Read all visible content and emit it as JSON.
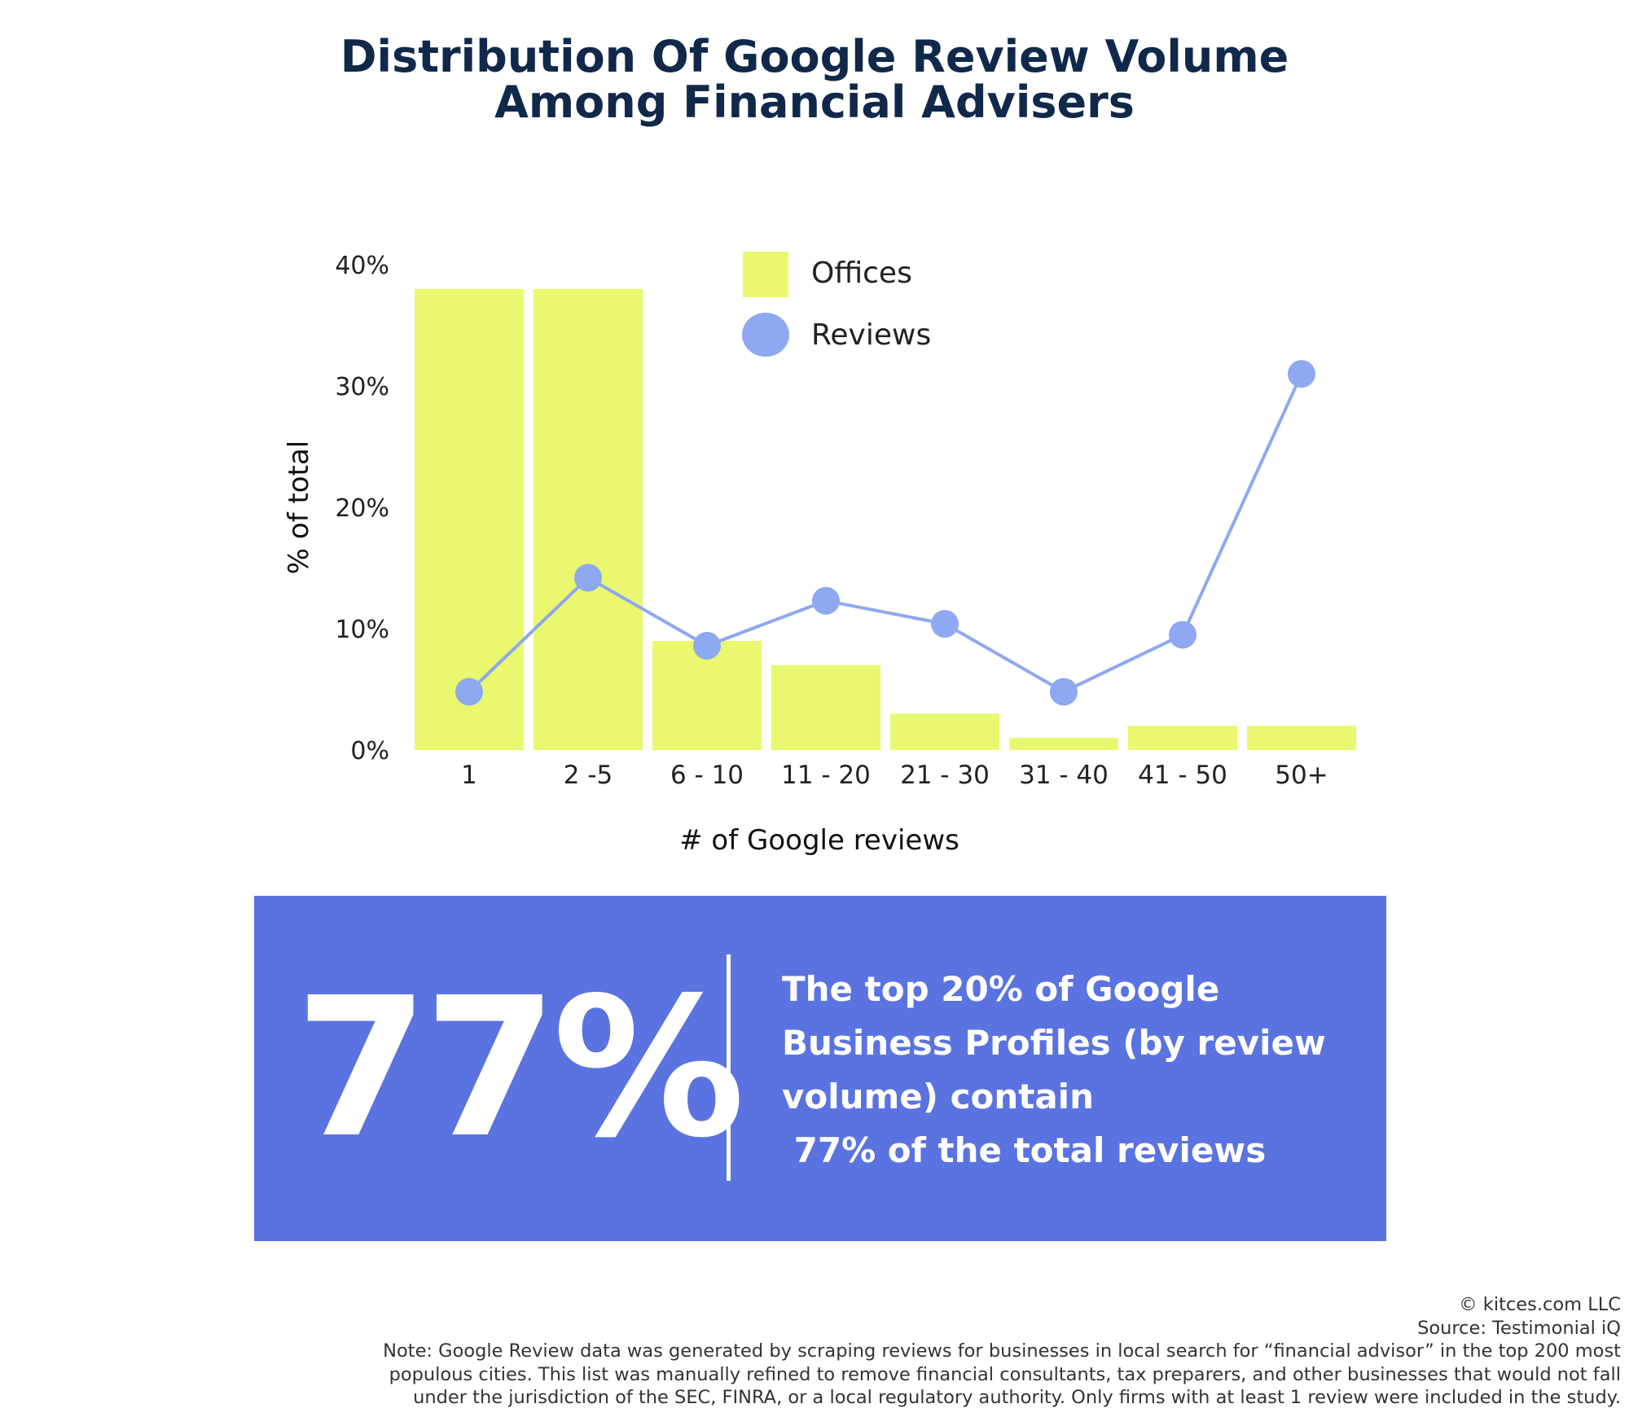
{
  "title": {
    "line1": "Distribution Of Google Review Volume",
    "line2": "Among Financial Advisers"
  },
  "chart_data": {
    "type": "bar",
    "categories": [
      "1",
      "2 -5",
      "6 - 10",
      "11 - 20",
      "21 - 30",
      "31 - 40",
      "41 - 50",
      "50+"
    ],
    "series": [
      {
        "name": "Offices",
        "type": "bar",
        "color": "#e9f86f",
        "values": [
          38,
          38,
          9,
          7,
          3,
          1,
          2,
          2
        ]
      },
      {
        "name": "Reviews",
        "type": "line",
        "color": "#8ea8f2",
        "values": [
          4.8,
          14.2,
          8.6,
          12.3,
          10.4,
          4.8,
          9.5,
          31.0
        ]
      }
    ],
    "xlabel": "# of Google reviews",
    "ylabel": "% of total",
    "yticks": [
      "0%",
      "10%",
      "20%",
      "30%",
      "40%"
    ],
    "ylim": [
      0,
      40
    ],
    "grid": false,
    "legend_position": "top-right"
  },
  "callout": {
    "big_stat": "77%",
    "lines": [
      "The top 20% of Google",
      "Business Profiles (by review",
      "volume) contain",
      " 77% of the total reviews"
    ],
    "background_color": "#5a73e0"
  },
  "footer": {
    "copyright": "© kitces.com LLC",
    "source": "Source: Testimonial iQ",
    "note_lines": [
      "Note: Google Review data was generated by scraping reviews for businesses in local search for “financial advisor” in the top 200 most",
      "populous cities. This list was manually refined to remove financial consultants, tax preparers, and other businesses that would not fall",
      "under the jurisdiction of the SEC, FINRA, or a local regulatory authority. Only firms with at least 1 review were included in the study."
    ]
  }
}
